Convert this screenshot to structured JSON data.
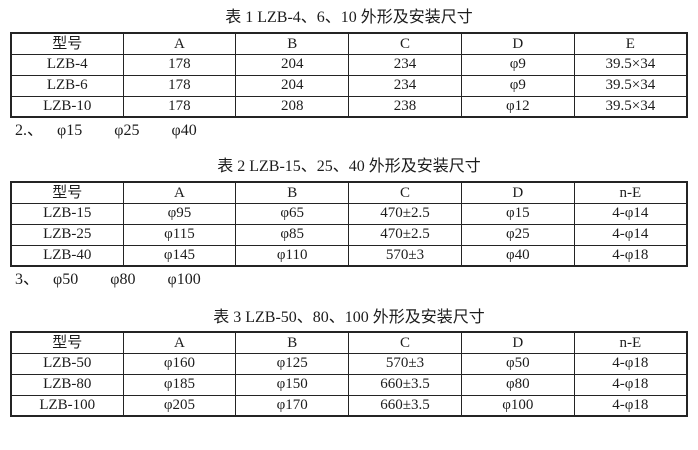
{
  "page": {
    "background_color": "#ffffff",
    "text_color": "#1c1c1c",
    "border_color": "#242424"
  },
  "tables": [
    {
      "title": "表 1 LZB-4、6、10 外形及安装尺寸",
      "headers": [
        "型号",
        "A",
        "B",
        "C",
        "D",
        "E"
      ],
      "rows": [
        [
          "LZB-4",
          "178",
          "204",
          "234",
          "φ9",
          "39.5×34"
        ],
        [
          "LZB-6",
          "178",
          "204",
          "234",
          "φ9",
          "39.5×34"
        ],
        [
          "LZB-10",
          "178",
          "208",
          "238",
          "φ12",
          "39.5×34"
        ]
      ],
      "note": {
        "prefix": "2.、",
        "items": [
          "φ15",
          "φ25",
          "φ40"
        ]
      }
    },
    {
      "title": "表 2 LZB-15、25、40 外形及安装尺寸",
      "headers": [
        "型号",
        "A",
        "B",
        "C",
        "D",
        "n-E"
      ],
      "rows": [
        [
          "LZB-15",
          "φ95",
          "φ65",
          "470±2.5",
          "φ15",
          "4-φ14"
        ],
        [
          "LZB-25",
          "φ115",
          "φ85",
          "470±2.5",
          "φ25",
          "4-φ14"
        ],
        [
          "LZB-40",
          "φ145",
          "φ110",
          "570±3",
          "φ40",
          "4-φ18"
        ]
      ],
      "note": {
        "prefix": "3、",
        "items": [
          "φ50",
          "φ80",
          "φ100"
        ]
      }
    },
    {
      "title": "表 3 LZB-50、80、100 外形及安装尺寸",
      "headers": [
        "型号",
        "A",
        "B",
        "C",
        "D",
        "n-E"
      ],
      "rows": [
        [
          "LZB-50",
          "φ160",
          "φ125",
          "570±3",
          "φ50",
          "4-φ18"
        ],
        [
          "LZB-80",
          "φ185",
          "φ150",
          "660±3.5",
          "φ80",
          "4-φ18"
        ],
        [
          "LZB-100",
          "φ205",
          "φ170",
          "660±3.5",
          "φ100",
          "4-φ18"
        ]
      ],
      "note": null
    }
  ]
}
